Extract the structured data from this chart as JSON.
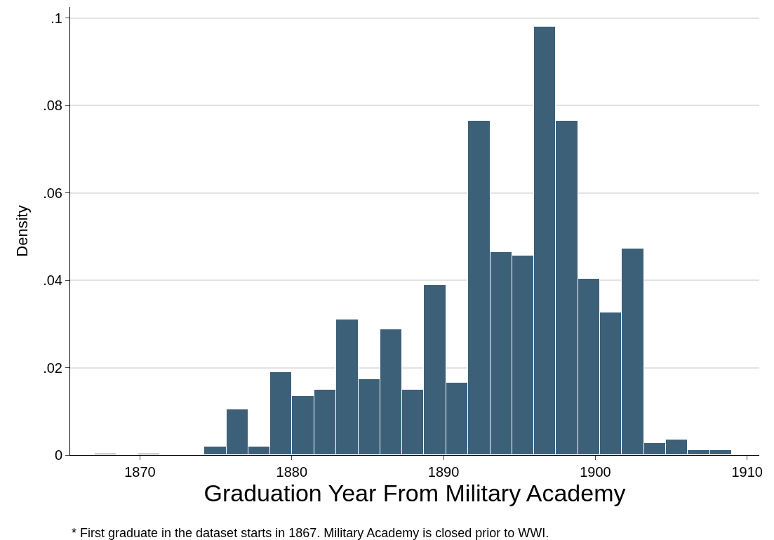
{
  "chart_data": {
    "type": "histogram",
    "xlabel": "Graduation Year From Military Academy",
    "ylabel": "Density",
    "bins": [
      1867.0,
      1868.45,
      1869.9,
      1871.34,
      1872.79,
      1874.24,
      1875.69,
      1877.14,
      1878.59,
      1880.03,
      1881.48,
      1882.93,
      1884.38,
      1885.83,
      1887.28,
      1888.72,
      1890.17,
      1891.62,
      1893.07,
      1894.52,
      1895.97,
      1897.41,
      1898.86,
      1900.31,
      1901.76,
      1903.21,
      1904.66,
      1906.1,
      1907.55,
      1909.0
    ],
    "values": [
      0.0004,
      0,
      0.0004,
      0,
      0,
      0.002,
      0.0105,
      0.002,
      0.019,
      0.0135,
      0.015,
      0.031,
      0.0173,
      0.0288,
      0.015,
      0.0388,
      0.0165,
      0.0765,
      0.0465,
      0.0457,
      0.098,
      0.0765,
      0.0403,
      0.0326,
      0.0473,
      0.0027,
      0.0035,
      0.0012,
      0.0012
    ],
    "color": "#3d6079",
    "xlim": [
      1865.4,
      1910.8
    ],
    "xticks": [
      1870,
      1880,
      1890,
      1900,
      1910
    ],
    "ylim": [
      0,
      0.1025
    ],
    "yticks": [
      0,
      {
        "value": 0.02,
        "label": ".02"
      },
      {
        "value": 0.04,
        "label": ".04"
      },
      {
        "value": 0.06,
        "label": ".06"
      },
      {
        "value": 0.08,
        "label": ".08"
      },
      {
        "value": 0.1,
        "label": ".1"
      }
    ],
    "grid": "y",
    "annotations": [
      "* First graduate in the dataset starts in 1867. Military Academy is closed prior to WWI."
    ]
  }
}
